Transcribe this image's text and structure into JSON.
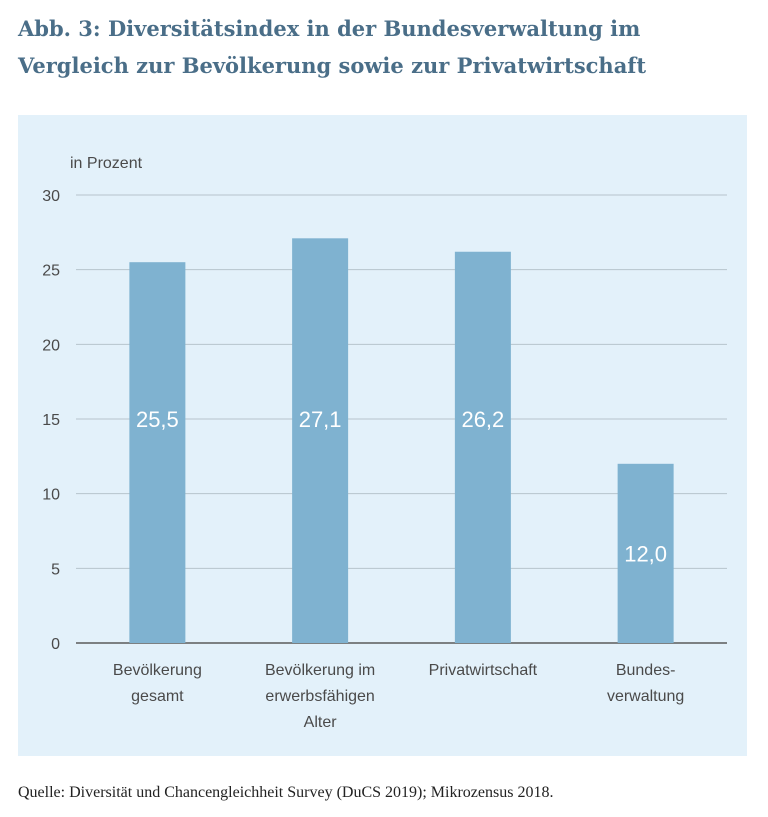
{
  "figure": {
    "title": "Abb. 3: Diversitätsindex in der Bundesverwaltung im Vergleich zur Bevölkerung sowie zur Privatwirtschaft",
    "source": "Quelle: Diversität und Chancengleichheit Survey (DuCS 2019); Mikrozensus 2018."
  },
  "colors": {
    "bar": "#7fb2d0",
    "grid": "#b7c4cc",
    "axis": "#5a5a5a",
    "text": "#4a4a4a",
    "value_label": "#ffffff",
    "background": "#e3f1fa"
  },
  "chart_data": {
    "type": "bar",
    "ylabel": "in Prozent",
    "ylim": [
      0,
      30
    ],
    "yticks": [
      0,
      5,
      10,
      15,
      20,
      25,
      30
    ],
    "grid": true,
    "categories": [
      [
        "Bevölkerung",
        "gesamt"
      ],
      [
        "Bevölkerung  im",
        "erwerbsfähigen",
        "Alter"
      ],
      [
        "Privatwirtschaft"
      ],
      [
        "Bundes-",
        "verwaltung"
      ]
    ],
    "values": [
      25.5,
      27.1,
      26.2,
      12.0
    ],
    "value_labels": [
      "25,5",
      "27,1",
      "26,2",
      "12,0"
    ]
  }
}
